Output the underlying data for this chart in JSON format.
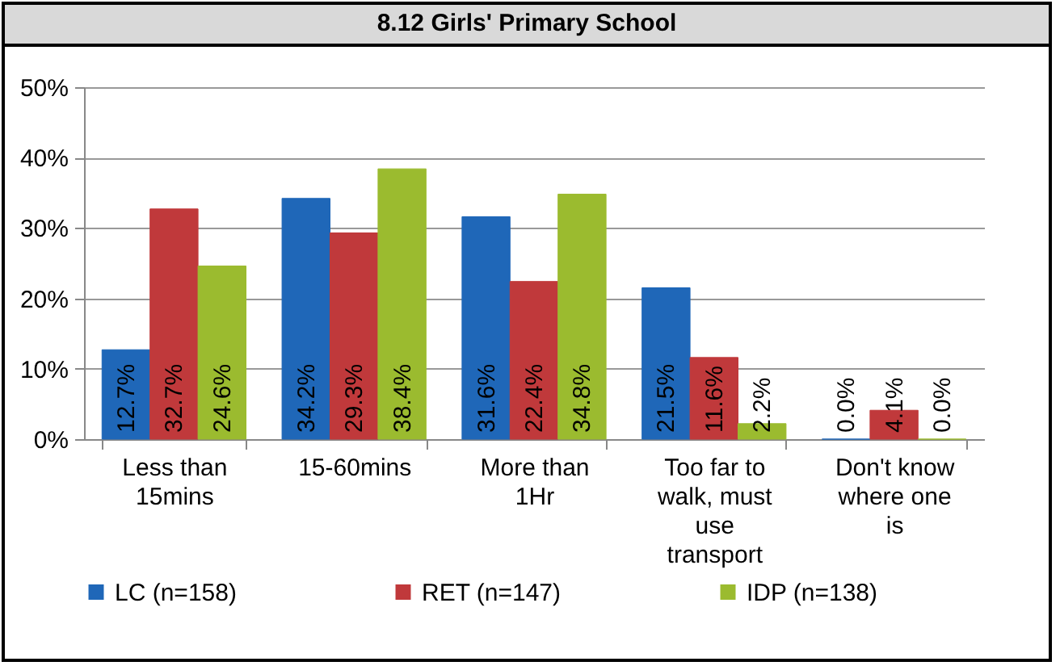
{
  "chart_data": {
    "type": "bar",
    "title": "8.12 Girls' Primary School",
    "categories": [
      "Less than 15mins",
      "15-60mins",
      "More than 1Hr",
      "Too far to walk, must use transport",
      "Don't know where one is"
    ],
    "series": [
      {
        "name": "LC (n=158)",
        "color": "#1f67b8",
        "values": [
          12.7,
          34.2,
          31.6,
          21.5,
          0.0
        ],
        "value_labels": [
          "12.7%",
          "34.2%",
          "31.6%",
          "21.5%",
          "0.0%"
        ]
      },
      {
        "name": "RET (n=147)",
        "color": "#c0393b",
        "values": [
          32.7,
          29.3,
          22.4,
          11.6,
          4.1
        ],
        "value_labels": [
          "32.7%",
          "29.3%",
          "22.4%",
          "11.6%",
          "4.1%"
        ]
      },
      {
        "name": "IDP (n=138)",
        "color": "#9bbb2f",
        "values": [
          24.6,
          38.4,
          34.8,
          2.2,
          0.0
        ],
        "value_labels": [
          "24.6%",
          "38.4%",
          "34.8%",
          "2.2%",
          "0.0%"
        ]
      }
    ],
    "ylim": [
      0,
      50
    ],
    "yticks": [
      {
        "value": 0,
        "label": "0%"
      },
      {
        "value": 10,
        "label": "10%"
      },
      {
        "value": 20,
        "label": "20%"
      },
      {
        "value": 30,
        "label": "30%"
      },
      {
        "value": 40,
        "label": "40%"
      },
      {
        "value": 50,
        "label": "50%"
      }
    ],
    "grid": "y",
    "legend": "bottom"
  }
}
